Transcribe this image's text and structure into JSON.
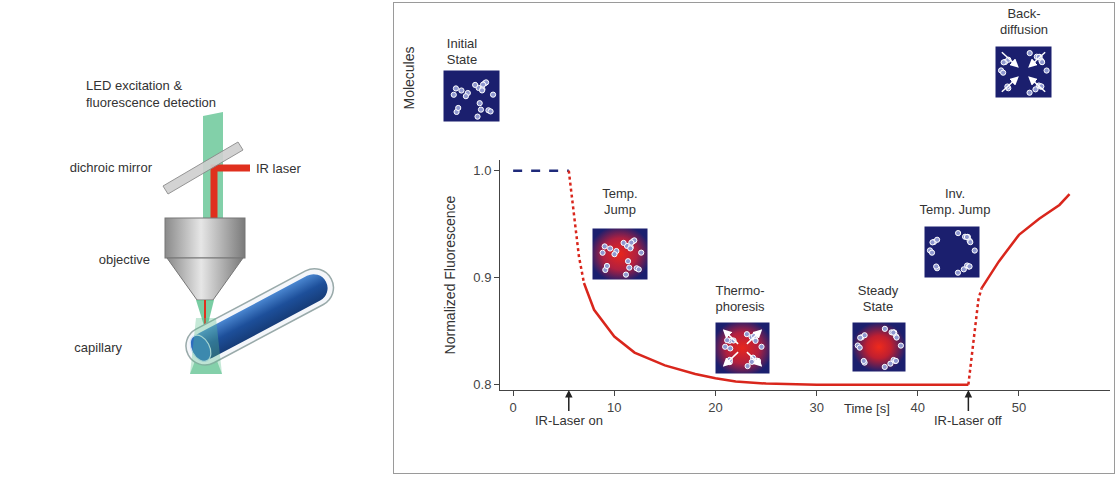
{
  "setup_diagram": {
    "led_label": [
      "LED excitation &",
      "fluorescence detection"
    ],
    "mirror_label": "dichroic  mirror",
    "laser_label": "IR laser",
    "objective_label": "objective",
    "capillary_label": "capillary"
  },
  "chart_data": {
    "type": "line",
    "row_label": "Molecules",
    "xaxis_label": "Time [s]",
    "yaxis_label": "Normalized Fluorescence",
    "xlim": [
      -1.3,
      59
    ],
    "xticks": [
      0,
      10,
      20,
      30,
      40,
      50
    ],
    "ylim": [
      0.795,
      1.01
    ],
    "yticks": [
      0.8,
      0.9,
      {
        "value": 1,
        "label": "1.0"
      }
    ],
    "grid": false,
    "events": [
      {
        "x": 5.5,
        "label": "IR-Laser on"
      },
      {
        "x": 45,
        "label": "IR-Laser off"
      }
    ],
    "stages": [
      {
        "label": [
          "Initial",
          "State"
        ]
      },
      {
        "label": [
          "Temp.",
          "Jump"
        ]
      },
      {
        "label": [
          "Thermo-",
          "phoresis"
        ]
      },
      {
        "label": [
          "Steady",
          "State"
        ]
      },
      {
        "label": [
          "Inv.",
          "Temp. Jump"
        ]
      },
      {
        "label": [
          "Back-",
          "diffusion"
        ]
      }
    ],
    "series": [
      {
        "color": "#1f2a7a",
        "line_style": "dashed",
        "x": [
          0,
          5.5
        ],
        "values": [
          1.0,
          1.0
        ]
      },
      {
        "color": "#d9261c",
        "line_style": "dotted",
        "x": [
          5.5,
          6,
          6.5,
          7
        ],
        "values": [
          1.0,
          0.96,
          0.92,
          0.895
        ]
      },
      {
        "color": "#d9261c",
        "line_style": "solid",
        "x": [
          7,
          8,
          10,
          12,
          15,
          18,
          20,
          22,
          25,
          30,
          35,
          40,
          45
        ],
        "values": [
          0.895,
          0.87,
          0.845,
          0.83,
          0.818,
          0.81,
          0.806,
          0.803,
          0.801,
          0.8,
          0.8,
          0.8,
          0.8
        ]
      },
      {
        "color": "#d9261c",
        "line_style": "dotted",
        "x": [
          45,
          45.5,
          46,
          46.3
        ],
        "values": [
          0.8,
          0.84,
          0.88,
          0.89
        ]
      },
      {
        "color": "#d9261c",
        "line_style": "solid",
        "x": [
          46.3,
          48,
          50,
          52,
          54,
          55
        ],
        "values": [
          0.89,
          0.915,
          0.94,
          0.955,
          0.968,
          0.978
        ]
      }
    ]
  }
}
